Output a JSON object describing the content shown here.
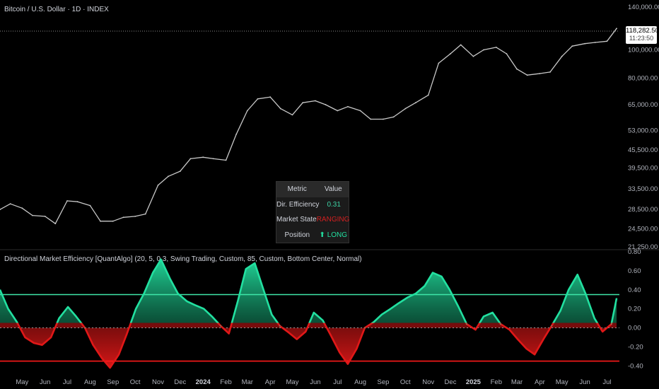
{
  "header": {
    "title": "Bitcoin / U.S. Dollar · 1D · INDEX"
  },
  "indicator": {
    "title": "Directional Market Efficiency [QuantAlgo] (20, 5, 0.3, Swing Trading, Custom, 85, Custom, Bottom Center, Normal)"
  },
  "price_tag": {
    "price": "118,282.50",
    "time": "11:23:50"
  },
  "dashboard": {
    "headers": [
      "Metric",
      "Value"
    ],
    "rows": [
      {
        "metric": "Dir. Efficiency",
        "value": "0.31"
      },
      {
        "metric": "Market State",
        "value": "RANGING"
      },
      {
        "metric": "Position",
        "value": "⬆ LONG"
      }
    ]
  },
  "colors": {
    "background": "#000000",
    "price_line": "#c8c8c8",
    "bull": "#22e0a0",
    "bear": "#e01818",
    "upper_line": "#3ee6a8",
    "lower_line": "#ff1a1a"
  },
  "chart_data": [
    {
      "type": "line",
      "title": "Bitcoin / U.S. Dollar · 1D · INDEX",
      "scale": "log",
      "y_tick_labels": [
        "140,000.00",
        "100,000.00",
        "80,000.00",
        "65,000.00",
        "53,000.00",
        "45,500.00",
        "39,500.00",
        "33,500.00",
        "28,500.00",
        "24,500.00",
        "21,250.00"
      ],
      "y_ticks": [
        140000,
        100000,
        80000,
        65000,
        53000,
        45500,
        39500,
        33500,
        28500,
        24500,
        21250
      ],
      "ylim": [
        21250,
        140000
      ],
      "x_tick_labels": [
        "May",
        "Jun",
        "Jul",
        "Aug",
        "Sep",
        "Oct",
        "Nov",
        "Dec",
        "2024",
        "Feb",
        "Mar",
        "Apr",
        "May",
        "Jun",
        "Jul",
        "Aug",
        "Sep",
        "Oct",
        "Nov",
        "Dec",
        "2025",
        "Feb",
        "Mar",
        "Apr",
        "May",
        "Jun",
        "Jul"
      ],
      "x": [
        "2023-04-01",
        "2023-04-15",
        "2023-05-01",
        "2023-05-15",
        "2023-06-01",
        "2023-06-15",
        "2023-07-01",
        "2023-07-15",
        "2023-08-01",
        "2023-08-15",
        "2023-09-01",
        "2023-09-15",
        "2023-10-01",
        "2023-10-15",
        "2023-11-01",
        "2023-11-15",
        "2023-12-01",
        "2023-12-15",
        "2024-01-01",
        "2024-01-15",
        "2024-02-01",
        "2024-02-15",
        "2024-03-01",
        "2024-03-15",
        "2024-04-01",
        "2024-04-15",
        "2024-05-01",
        "2024-05-15",
        "2024-06-01",
        "2024-06-15",
        "2024-07-01",
        "2024-07-15",
        "2024-08-01",
        "2024-08-15",
        "2024-09-01",
        "2024-09-15",
        "2024-10-01",
        "2024-10-15",
        "2024-11-01",
        "2024-11-15",
        "2024-12-01",
        "2024-12-15",
        "2025-01-01",
        "2025-01-15",
        "2025-02-01",
        "2025-02-15",
        "2025-03-01",
        "2025-03-15",
        "2025-04-01",
        "2025-04-15",
        "2025-05-01",
        "2025-05-15",
        "2025-06-01",
        "2025-06-15",
        "2025-07-01",
        "2025-07-14"
      ],
      "values": [
        28500,
        29800,
        28800,
        27200,
        27000,
        25500,
        30500,
        30300,
        29400,
        26000,
        26000,
        26800,
        27000,
        27500,
        34500,
        37000,
        38500,
        42500,
        43000,
        42500,
        42000,
        51500,
        62000,
        68000,
        69000,
        63000,
        60000,
        66000,
        67000,
        65000,
        62000,
        64000,
        62000,
        58000,
        58000,
        59000,
        63000,
        66000,
        70000,
        90000,
        97000,
        104000,
        95000,
        100000,
        102000,
        97000,
        86000,
        82000,
        83000,
        84000,
        95000,
        103000,
        105000,
        106000,
        107000,
        118282
      ]
    },
    {
      "type": "area",
      "title": "Directional Market Efficiency [QuantAlgo] (20, 5, 0.3, Swing Trading, Custom, 85, Custom, Bottom Center, Normal)",
      "y_tick_labels": [
        "0.80",
        "0.60",
        "0.40",
        "0.20",
        "0.00",
        "-0.20",
        "-0.40"
      ],
      "y_ticks": [
        0.8,
        0.6,
        0.4,
        0.2,
        0.0,
        -0.2,
        -0.4
      ],
      "ylim": [
        -0.45,
        0.8
      ],
      "upper_threshold": 0.35,
      "lower_threshold": -0.35,
      "x": [
        "2023-04-01",
        "2023-04-12",
        "2023-04-24",
        "2023-05-05",
        "2023-05-17",
        "2023-05-28",
        "2023-06-09",
        "2023-06-20",
        "2023-07-02",
        "2023-07-13",
        "2023-07-25",
        "2023-08-05",
        "2023-08-17",
        "2023-08-28",
        "2023-09-09",
        "2023-09-20",
        "2023-10-02",
        "2023-10-13",
        "2023-10-25",
        "2023-11-05",
        "2023-11-17",
        "2023-11-28",
        "2023-12-10",
        "2023-12-21",
        "2024-01-02",
        "2024-01-13",
        "2024-01-25",
        "2024-02-05",
        "2024-02-17",
        "2024-02-28",
        "2024-03-11",
        "2024-03-22",
        "2024-04-03",
        "2024-04-14",
        "2024-04-26",
        "2024-05-07",
        "2024-05-19",
        "2024-05-30",
        "2024-06-11",
        "2024-06-22",
        "2024-07-04",
        "2024-07-15",
        "2024-07-27",
        "2024-08-07",
        "2024-08-19",
        "2024-08-30",
        "2024-09-11",
        "2024-09-22",
        "2024-10-04",
        "2024-10-15",
        "2024-10-27",
        "2024-11-07",
        "2024-11-19",
        "2024-11-30",
        "2024-12-12",
        "2024-12-23",
        "2025-01-04",
        "2025-01-15",
        "2025-01-27",
        "2025-02-07",
        "2025-02-19",
        "2025-03-02",
        "2025-03-14",
        "2025-03-25",
        "2025-04-06",
        "2025-04-17",
        "2025-04-29",
        "2025-05-10",
        "2025-05-22",
        "2025-06-02",
        "2025-06-14",
        "2025-06-25",
        "2025-07-07",
        "2025-07-14"
      ],
      "values": [
        0.4,
        0.2,
        0.06,
        -0.1,
        -0.16,
        -0.18,
        -0.1,
        0.1,
        0.22,
        0.12,
        0.0,
        -0.18,
        -0.32,
        -0.42,
        -0.28,
        -0.06,
        0.2,
        0.36,
        0.58,
        0.72,
        0.52,
        0.36,
        0.28,
        0.24,
        0.2,
        0.12,
        0.02,
        -0.06,
        0.28,
        0.62,
        0.68,
        0.42,
        0.14,
        0.02,
        -0.05,
        -0.12,
        -0.04,
        0.16,
        0.08,
        -0.08,
        -0.26,
        -0.38,
        -0.22,
        0.0,
        0.06,
        0.14,
        0.2,
        0.26,
        0.32,
        0.36,
        0.44,
        0.58,
        0.54,
        0.4,
        0.22,
        0.04,
        -0.02,
        0.12,
        0.16,
        0.04,
        -0.02,
        -0.12,
        -0.22,
        -0.28,
        -0.12,
        0.02,
        0.18,
        0.4,
        0.56,
        0.36,
        0.1,
        -0.04,
        0.04,
        0.31
      ]
    }
  ]
}
